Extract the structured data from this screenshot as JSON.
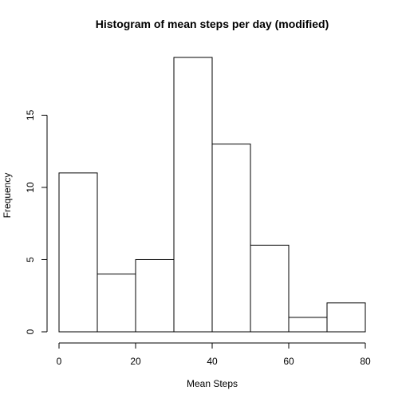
{
  "chart_data": {
    "type": "bar",
    "title": "Histogram of mean steps per day (modified)",
    "xlabel": "Mean Steps",
    "ylabel": "Frequency",
    "bins": [
      {
        "from": 0,
        "to": 10,
        "count": 11
      },
      {
        "from": 10,
        "to": 20,
        "count": 4
      },
      {
        "from": 20,
        "to": 30,
        "count": 5
      },
      {
        "from": 30,
        "to": 40,
        "count": 19
      },
      {
        "from": 40,
        "to": 50,
        "count": 13
      },
      {
        "from": 50,
        "to": 60,
        "count": 6
      },
      {
        "from": 60,
        "to": 70,
        "count": 1
      },
      {
        "from": 70,
        "to": 80,
        "count": 2
      }
    ],
    "xticks": [
      0,
      20,
      40,
      60,
      80
    ],
    "yticks": [
      0,
      5,
      10,
      15
    ],
    "xlim": [
      0,
      80
    ],
    "ylim": [
      0,
      19
    ],
    "grid": false
  }
}
